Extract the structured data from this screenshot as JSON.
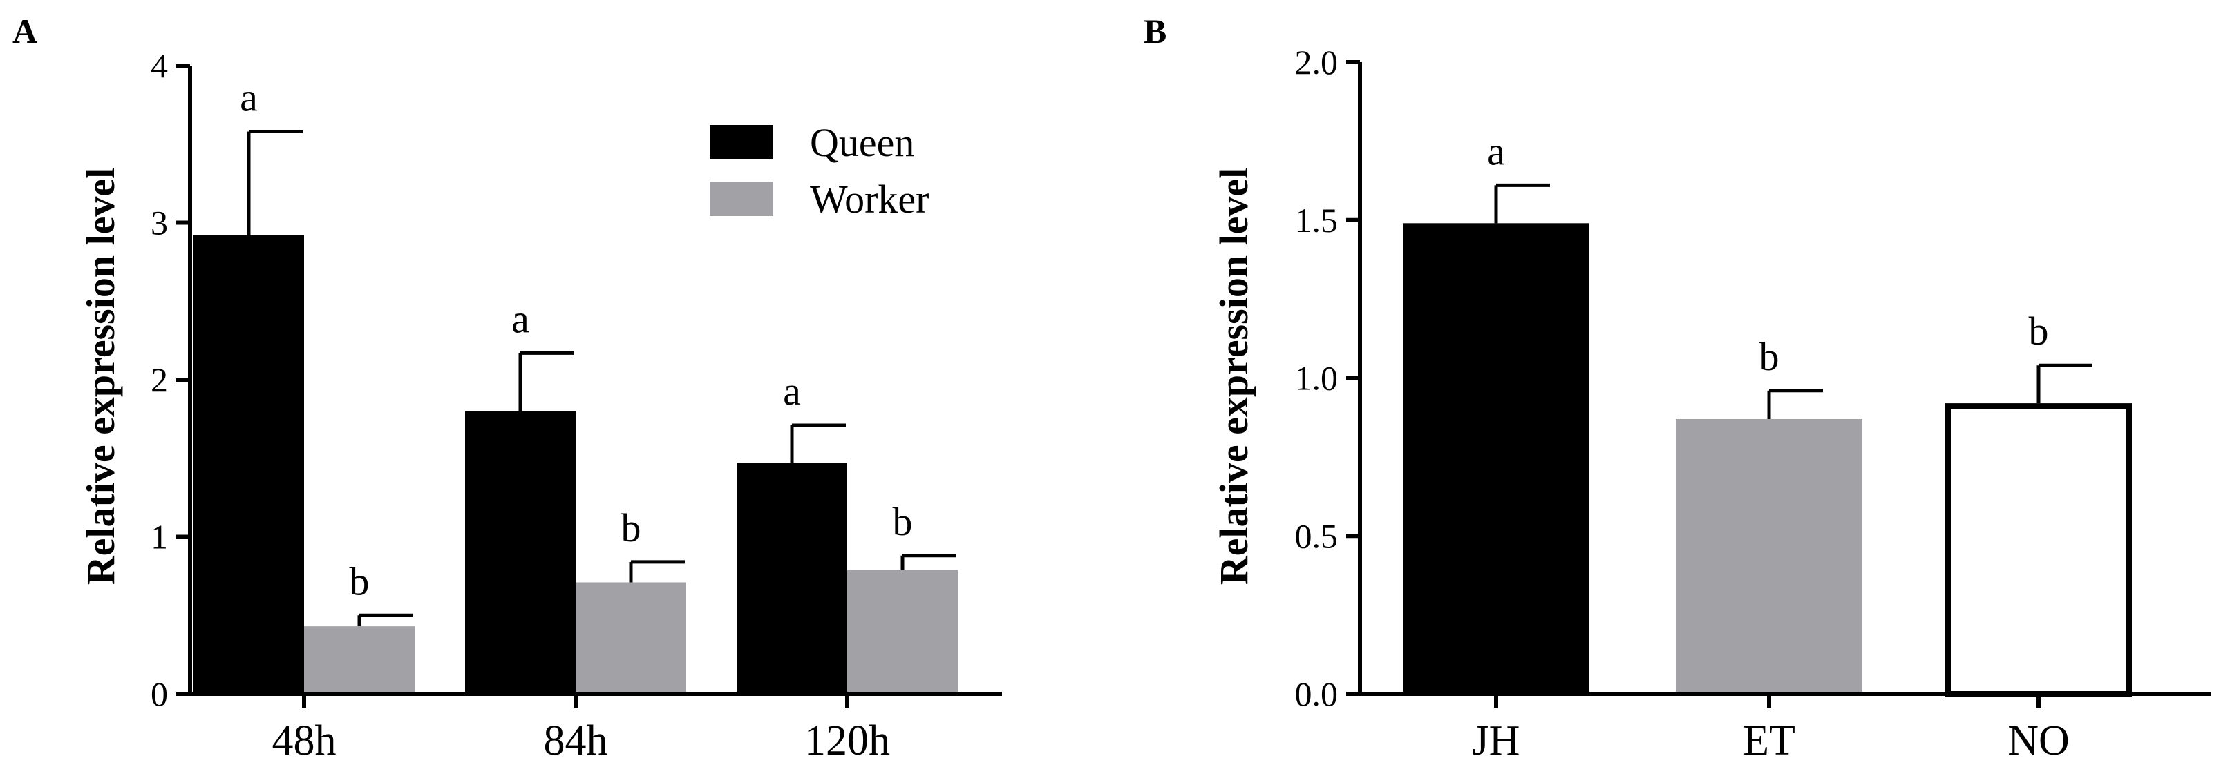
{
  "chart_data": [
    {
      "panel_label": "A",
      "type": "bar",
      "ylabel": "Relative expression level",
      "ylim": [
        0,
        4
      ],
      "y_ticks": [
        "0",
        "1",
        "2",
        "3",
        "4"
      ],
      "categories": [
        "48h",
        "84h",
        "120h"
      ],
      "series": [
        {
          "name": "Queen",
          "color": "#000000",
          "values": [
            2.92,
            1.8,
            1.47
          ],
          "errors": [
            0.66,
            0.37,
            0.24
          ],
          "sig": [
            "a",
            "a",
            "a"
          ]
        },
        {
          "name": "Worker",
          "color": "#a2a1a6",
          "values": [
            0.43,
            0.71,
            0.79
          ],
          "errors": [
            0.07,
            0.13,
            0.09
          ],
          "sig": [
            "b",
            "b",
            "b"
          ]
        }
      ],
      "legend": [
        {
          "label": "Queen",
          "color": "#000000"
        },
        {
          "label": "Worker",
          "color": "#a2a1a6"
        }
      ],
      "legend_position": "top-right",
      "grid": false
    },
    {
      "panel_label": "B",
      "type": "bar",
      "ylabel": "Relative expression level",
      "ylim": [
        0,
        2.0
      ],
      "y_ticks": [
        "0.0",
        "0.5",
        "1.0",
        "1.5",
        "2.0"
      ],
      "categories": [
        "JH",
        "ET",
        "NO"
      ],
      "values": [
        1.49,
        0.87,
        0.92
      ],
      "errors": [
        0.12,
        0.09,
        0.12
      ],
      "sig": [
        "a",
        "b",
        "b"
      ],
      "colors": [
        "#000000",
        "#a2a1a6",
        "#ffffff"
      ],
      "grid": false
    }
  ]
}
